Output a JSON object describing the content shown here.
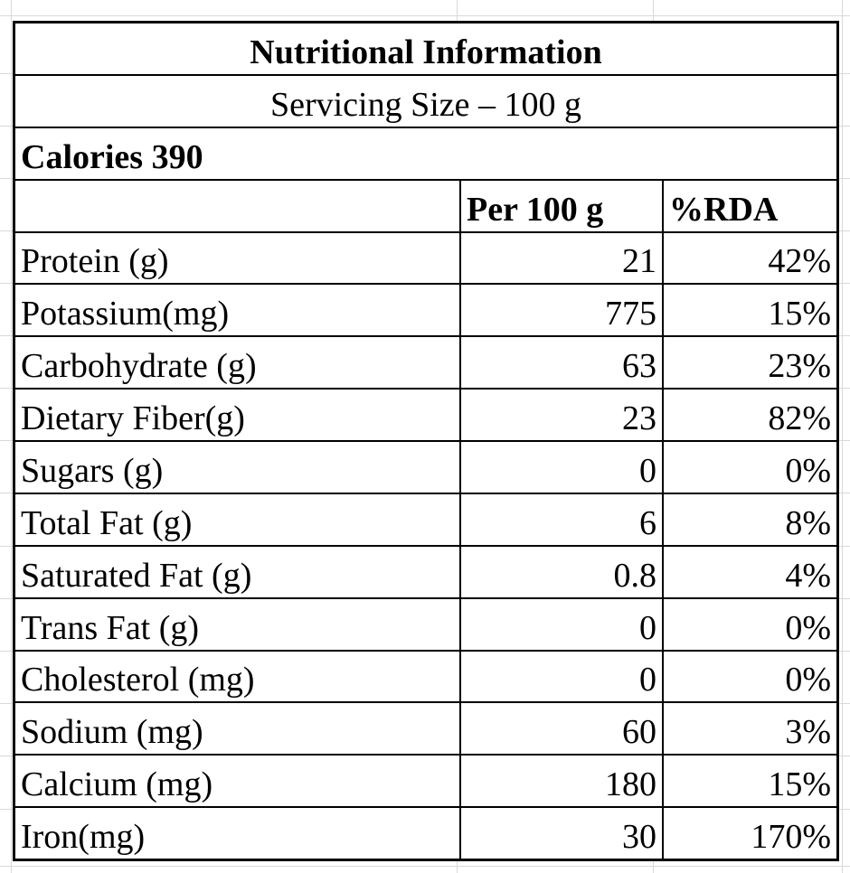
{
  "table": {
    "title": "Nutritional Information",
    "serving_size": "Servicing Size – 100 g",
    "calories": "Calories 390",
    "columns": {
      "amount": "Per 100 g",
      "rda": "%RDA"
    },
    "nutrients": [
      {
        "label": "Protein (g)",
        "amount": "21",
        "rda": "42%"
      },
      {
        "label": "Potassium(mg)",
        "amount": "775",
        "rda": "15%"
      },
      {
        "label": "Carbohydrate (g)",
        "amount": "63",
        "rda": "23%"
      },
      {
        "label": "Dietary Fiber(g)",
        "amount": "23",
        "rda": "82%"
      },
      {
        "label": "Sugars (g)",
        "amount": "0",
        "rda": "0%"
      },
      {
        "label": "Total Fat (g)",
        "amount": "6",
        "rda": "8%"
      },
      {
        "label": "Saturated Fat (g)",
        "amount": "0.8",
        "rda": "4%"
      },
      {
        "label": "Trans Fat (g)",
        "amount": "0",
        "rda": "0%"
      },
      {
        "label": "Cholesterol (mg)",
        "amount": "0",
        "rda": "0%"
      },
      {
        "label": "Sodium (mg)",
        "amount": "60",
        "rda": "3%"
      },
      {
        "label": "Calcium (mg)",
        "amount": "180",
        "rda": "15%"
      },
      {
        "label": "Iron(mg)",
        "amount": "30",
        "rda": "170%"
      }
    ],
    "colors": {
      "table_border": "#000000",
      "gridline": "#d9d9d9",
      "cell_background": "#ffffff",
      "text": "#000000"
    }
  }
}
